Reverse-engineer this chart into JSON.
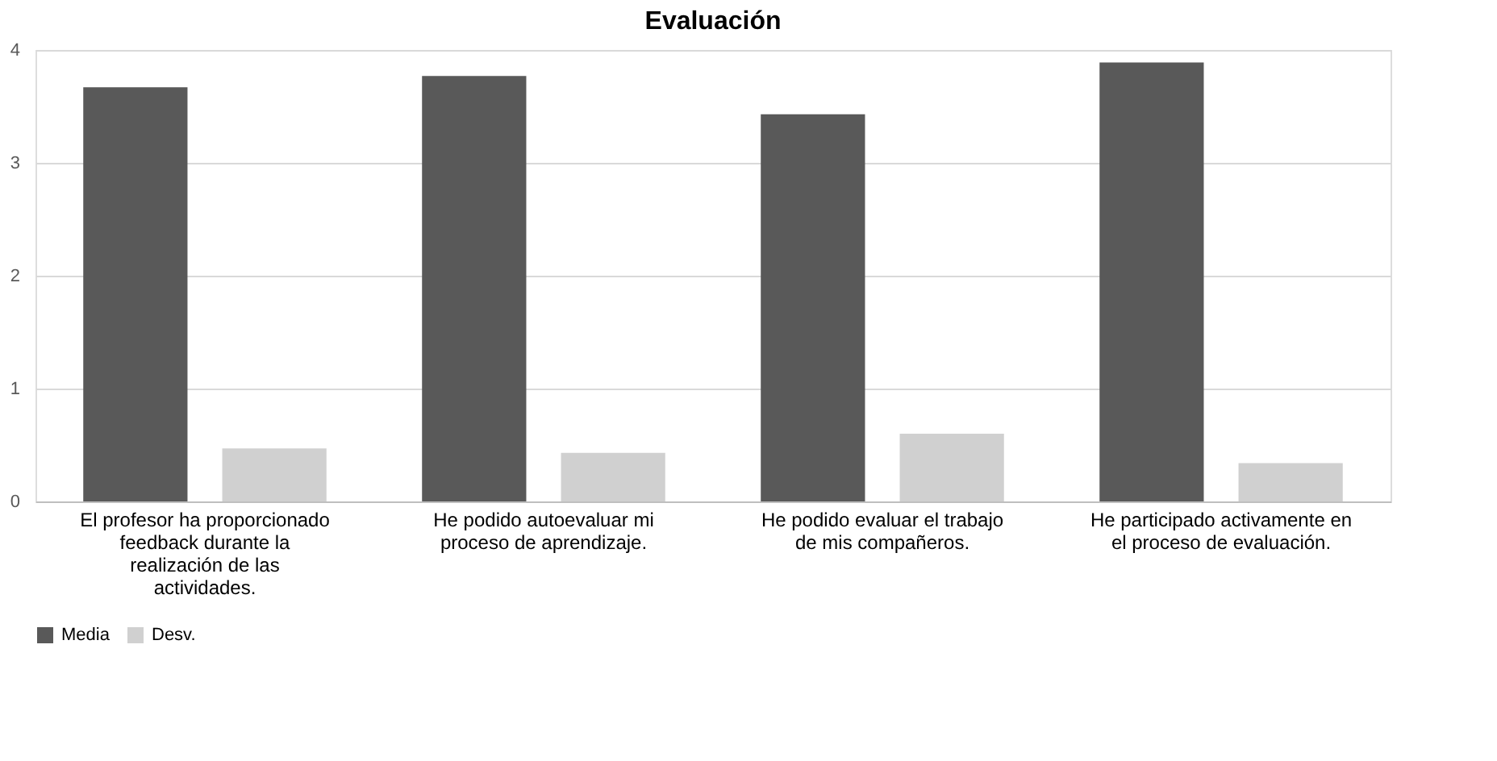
{
  "chart_data": {
    "type": "bar",
    "title": "Evaluación",
    "categories": [
      "El profesor ha proporcionado feedback durante la realización de las actividades.",
      "He podido autoevaluar mi proceso de aprendizaje.",
      "He podido evaluar el trabajo de mis compañeros.",
      "He participado activamente en el proceso de evaluación."
    ],
    "series": [
      {
        "name": "Media",
        "color": "#595959",
        "values": [
          3.67,
          3.77,
          3.43,
          3.89
        ]
      },
      {
        "name": "Desv.",
        "color": "#d0d0d0",
        "values": [
          0.47,
          0.43,
          0.6,
          0.34
        ]
      }
    ],
    "ylim": [
      0,
      4
    ],
    "yticks": [
      0,
      1,
      2,
      3,
      4
    ],
    "grid": "y",
    "legend": "bottom"
  }
}
